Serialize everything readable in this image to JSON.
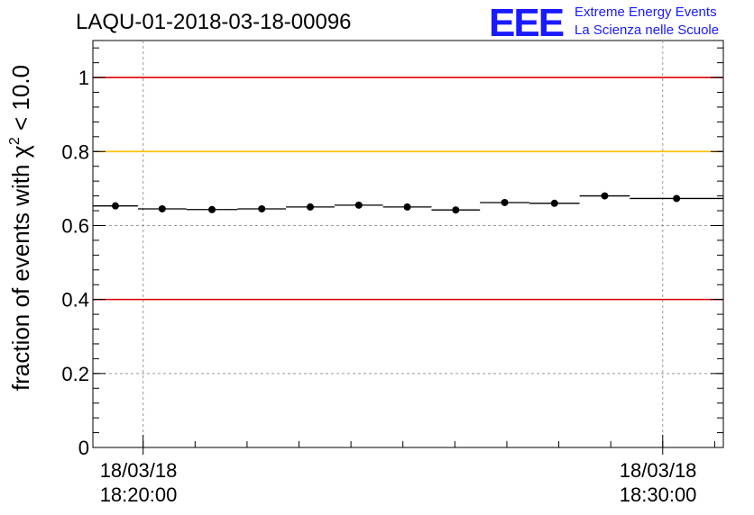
{
  "header": {
    "run_title": "LAQU-01-2018-03-18-00096",
    "logo_letters": "EEE",
    "logo_line1": "Extreme Energy Events",
    "logo_line2": "La Scienza nelle Scuole"
  },
  "colors": {
    "red_line": "#e00000",
    "yellow_line": "#ffc000",
    "logo_blue": "#1a1aff",
    "points": "#000000"
  },
  "chart_data": {
    "type": "scatter",
    "title": "LAQU-01-2018-03-18-00096",
    "xlabel": "",
    "ylabel_prefix": "fraction of events with ",
    "ylabel_symbol": "χ",
    "ylabel_exponent": "2",
    "ylabel_suffix": " < 10.0",
    "x_axis_type": "time",
    "xlim": [
      "2018-03-18 18:19:02",
      "2018-03-18 18:31:10"
    ],
    "ylim": [
      0,
      1.1
    ],
    "yticks": [
      0,
      0.2,
      0.4,
      0.6,
      0.8,
      1
    ],
    "ytick_labels": [
      "0",
      "0.2",
      "0.4",
      "0.6",
      "0.8",
      "1"
    ],
    "xticks": [
      {
        "x": "2018-03-18 18:20:00",
        "date": "18/03/18",
        "time": "18:20:00"
      },
      {
        "x": "2018-03-18 18:30:00",
        "date": "18/03/18",
        "time": "18:30:00"
      }
    ],
    "grid": true,
    "reference_lines": [
      {
        "y": 1.0,
        "color": "#e00000"
      },
      {
        "y": 0.8,
        "color": "#ffc000"
      },
      {
        "y": 0.4,
        "color": "#e00000"
      }
    ],
    "series": [
      {
        "points": [
          {
            "x_start": "2018-03-18 18:19:02",
            "x_end": "2018-03-18 18:19:54",
            "y": 0.653
          },
          {
            "x_start": "2018-03-18 18:19:54",
            "x_end": "2018-03-18 18:20:50",
            "y": 0.645
          },
          {
            "x_start": "2018-03-18 18:20:50",
            "x_end": "2018-03-18 18:21:49",
            "y": 0.643
          },
          {
            "x_start": "2018-03-18 18:21:49",
            "x_end": "2018-03-18 18:22:45",
            "y": 0.645
          },
          {
            "x_start": "2018-03-18 18:22:45",
            "x_end": "2018-03-18 18:23:41",
            "y": 0.65
          },
          {
            "x_start": "2018-03-18 18:23:41",
            "x_end": "2018-03-18 18:24:37",
            "y": 0.655
          },
          {
            "x_start": "2018-03-18 18:24:37",
            "x_end": "2018-03-18 18:25:33",
            "y": 0.65
          },
          {
            "x_start": "2018-03-18 18:25:33",
            "x_end": "2018-03-18 18:26:29",
            "y": 0.642
          },
          {
            "x_start": "2018-03-18 18:26:29",
            "x_end": "2018-03-18 18:27:26",
            "y": 0.662
          },
          {
            "x_start": "2018-03-18 18:27:26",
            "x_end": "2018-03-18 18:28:24",
            "y": 0.66
          },
          {
            "x_start": "2018-03-18 18:28:24",
            "x_end": "2018-03-18 18:29:22",
            "y": 0.68
          },
          {
            "x_start": "2018-03-18 18:29:22",
            "x_end": "2018-03-18 18:31:10",
            "y": 0.673
          }
        ]
      }
    ]
  }
}
